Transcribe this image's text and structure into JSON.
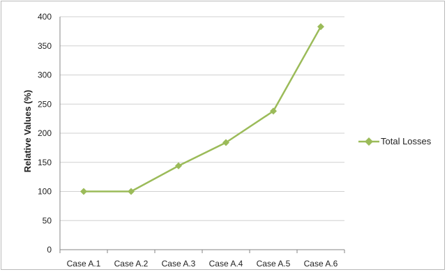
{
  "chart_data": {
    "type": "line",
    "categories": [
      "Case A.1",
      "Case A.2",
      "Case A.3",
      "Case A.4",
      "Case A.5",
      "Case A.6"
    ],
    "series": [
      {
        "name": "Total Losses",
        "values": [
          100,
          100,
          144,
          184,
          238,
          383
        ]
      }
    ],
    "title": "",
    "xlabel": "",
    "ylabel": "Relative Values (%)",
    "ylim": [
      0,
      400
    ],
    "yticks": [
      "0",
      "50",
      "100",
      "150",
      "200",
      "250",
      "300",
      "350",
      "400"
    ],
    "grid": true,
    "legend_position": "right",
    "colors": {
      "series": "#9bbb59",
      "grid": "#d0d0d0",
      "axis": "#868686",
      "frame": "#b9b9b9"
    },
    "marker": "diamond"
  }
}
